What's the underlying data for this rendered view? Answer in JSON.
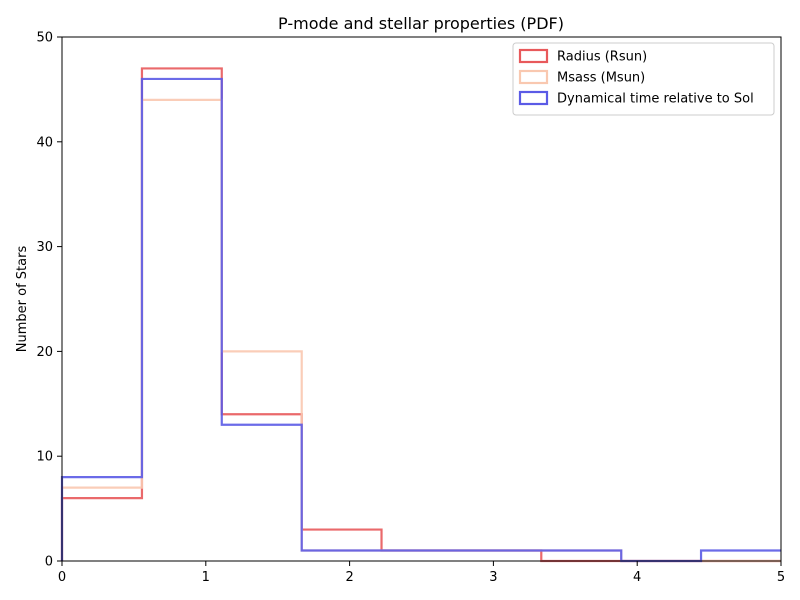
{
  "chart_data": {
    "type": "histogram-step",
    "title": "P-mode and stellar properties (PDF)",
    "xlabel": "",
    "ylabel": "Number of Stars",
    "xlim": [
      0,
      5
    ],
    "ylim": [
      0,
      50
    ],
    "xticks": [
      0,
      1,
      2,
      3,
      4,
      5
    ],
    "yticks": [
      0,
      10,
      20,
      30,
      40,
      50
    ],
    "grid": false,
    "legend_position": "top-right",
    "bin_edges": [
      0,
      0.556,
      1.111,
      1.667,
      2.222,
      2.778,
      3.333,
      3.889,
      4.444,
      5.0
    ],
    "series": [
      {
        "name": "Radius (Rsun)",
        "color": "#e8595b",
        "values": [
          6,
          47,
          14,
          3,
          1,
          1,
          0,
          0,
          0
        ]
      },
      {
        "name": "Msass (Msun)",
        "color": "#f9c8b0",
        "values": [
          7,
          44,
          20,
          1,
          1,
          1,
          1,
          0,
          0
        ]
      },
      {
        "name": "Dynamical time relative to Sol",
        "color": "#5b5be6",
        "values": [
          8,
          46,
          13,
          1,
          1,
          1,
          1,
          0,
          1
        ]
      }
    ]
  }
}
